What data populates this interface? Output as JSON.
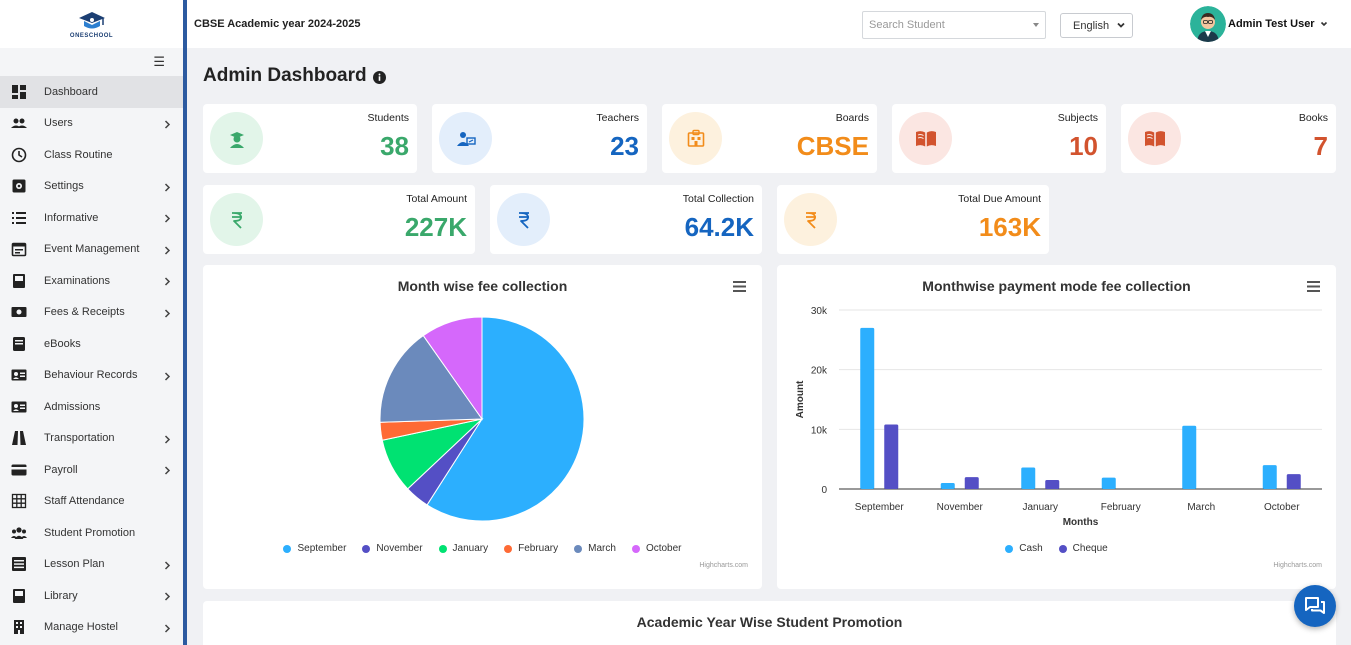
{
  "app": {
    "logo_text": "ONESCHOOL",
    "academic_year": "CBSE Academic year 2024-2025"
  },
  "topbar": {
    "search_placeholder": "Search Student",
    "language": "English",
    "user_name": "Admin Test User"
  },
  "sidebar": {
    "items": [
      {
        "label": "Dashboard",
        "icon": "dashboard-icon",
        "active": true,
        "has_submenu": false
      },
      {
        "label": "Users",
        "icon": "users-icon",
        "has_submenu": true
      },
      {
        "label": "Class Routine",
        "icon": "clock-icon",
        "has_submenu": false
      },
      {
        "label": "Settings",
        "icon": "settings-icon",
        "has_submenu": true
      },
      {
        "label": "Informative",
        "icon": "list-icon",
        "has_submenu": true
      },
      {
        "label": "Event Management",
        "icon": "calendar-icon",
        "has_submenu": true
      },
      {
        "label": "Examinations",
        "icon": "book-icon",
        "has_submenu": true
      },
      {
        "label": "Fees & Receipts",
        "icon": "money-icon",
        "has_submenu": true
      },
      {
        "label": "eBooks",
        "icon": "ebook-icon",
        "has_submenu": false
      },
      {
        "label": "Behaviour Records",
        "icon": "id-card-icon",
        "has_submenu": true
      },
      {
        "label": "Admissions",
        "icon": "admission-icon",
        "has_submenu": false
      },
      {
        "label": "Transportation",
        "icon": "road-icon",
        "has_submenu": true
      },
      {
        "label": "Payroll",
        "icon": "credit-card-icon",
        "has_submenu": true
      },
      {
        "label": "Staff Attendance",
        "icon": "grid-icon",
        "has_submenu": false
      },
      {
        "label": "Student Promotion",
        "icon": "group-icon",
        "has_submenu": false
      },
      {
        "label": "Lesson Plan",
        "icon": "lesson-icon",
        "has_submenu": true
      },
      {
        "label": "Library",
        "icon": "library-icon",
        "has_submenu": true
      },
      {
        "label": "Manage Hostel",
        "icon": "building-icon",
        "has_submenu": true
      }
    ]
  },
  "page": {
    "title": "Admin Dashboard"
  },
  "stats_row1": [
    {
      "label": "Students",
      "value": "38",
      "color": "#3aa86b",
      "bg": "#e2f5e9",
      "icon": "graduate-icon"
    },
    {
      "label": "Teachers",
      "value": "23",
      "color": "#1565c0",
      "bg": "#e3eefb",
      "icon": "teacher-icon"
    },
    {
      "label": "Boards",
      "value": "CBSE",
      "color": "#f28c1a",
      "bg": "#fdf1de",
      "icon": "board-icon"
    },
    {
      "label": "Subjects",
      "value": "10",
      "color": "#d2532e",
      "bg": "#fbe6e2",
      "icon": "open-book-icon"
    },
    {
      "label": "Books",
      "value": "7",
      "color": "#d2532e",
      "bg": "#fbe6e2",
      "icon": "open-book-icon"
    }
  ],
  "stats_row2": [
    {
      "label": "Total Amount",
      "value": "227K",
      "color": "#3aa86b",
      "bg": "#e2f5e9",
      "icon": "rupee-icon"
    },
    {
      "label": "Total Collection",
      "value": "64.2K",
      "color": "#1565c0",
      "bg": "#e3eefb",
      "icon": "rupee-icon"
    },
    {
      "label": "Total Due Amount",
      "value": "163K",
      "color": "#f28c1a",
      "bg": "#fdf1de",
      "icon": "rupee-icon"
    }
  ],
  "chart_data": [
    {
      "type": "pie",
      "title": "Month wise fee collection",
      "categories": [
        "September",
        "November",
        "January",
        "February",
        "March",
        "October"
      ],
      "values": [
        37.5,
        2.5,
        5.5,
        1.8,
        10.0,
        6.2
      ],
      "colors": [
        "#2caffe",
        "#544fc5",
        "#00e272",
        "#fe6a35",
        "#6b8abc",
        "#d568fb"
      ],
      "legend": "bottom",
      "credit": "Highcharts.com"
    },
    {
      "type": "bar",
      "title": "Monthwise payment mode fee collection",
      "categories": [
        "September",
        "November",
        "January",
        "February",
        "March",
        "October"
      ],
      "series": [
        {
          "name": "Cash",
          "values": [
            27000,
            1000,
            3600,
            1900,
            10600,
            4000
          ],
          "color": "#2caffe"
        },
        {
          "name": "Cheque",
          "values": [
            10800,
            2000,
            1500,
            0,
            0,
            2500
          ],
          "color": "#544fc5"
        }
      ],
      "xlabel": "Months",
      "ylabel": "Amount",
      "yticks": [
        "0",
        "10k",
        "20k",
        "30k"
      ],
      "ylim": [
        0,
        30000
      ],
      "grid": true,
      "legend": "bottom",
      "credit": "Highcharts.com"
    }
  ],
  "promotion": {
    "title": "Academic Year Wise Student Promotion"
  }
}
